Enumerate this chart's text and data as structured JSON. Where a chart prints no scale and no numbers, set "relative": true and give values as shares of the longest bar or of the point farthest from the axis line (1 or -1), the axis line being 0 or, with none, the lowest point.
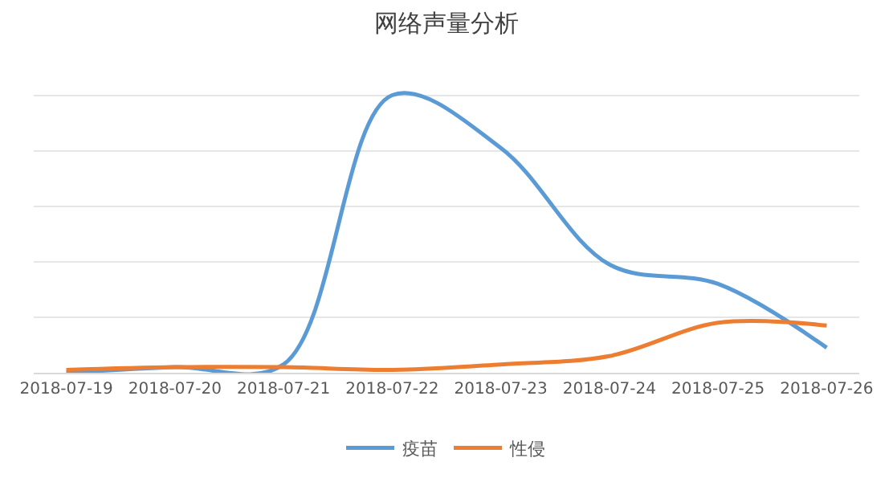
{
  "chart_data": {
    "type": "line",
    "title": "网络声量分析",
    "relative": true,
    "grid": "y",
    "legend": "bottom",
    "marker": "none",
    "line_style": "solid",
    "categories": [
      "2018-07-19",
      "2018-07-20",
      "2018-07-21",
      "2018-07-22",
      "2018-07-23",
      "2018-07-24",
      "2018-07-25",
      "2018-07-26"
    ],
    "series": [
      {
        "name": "疫苗",
        "color": "#5b9bd5",
        "values": [
          0,
          0.02,
          0.03,
          1,
          0.81,
          0.39,
          0.32,
          0.09
        ]
      },
      {
        "name": "性侵",
        "color": "#ed7d31",
        "values": [
          0.01,
          0.02,
          0.02,
          0.01,
          0.03,
          0.06,
          0.18,
          0.17
        ]
      }
    ]
  }
}
